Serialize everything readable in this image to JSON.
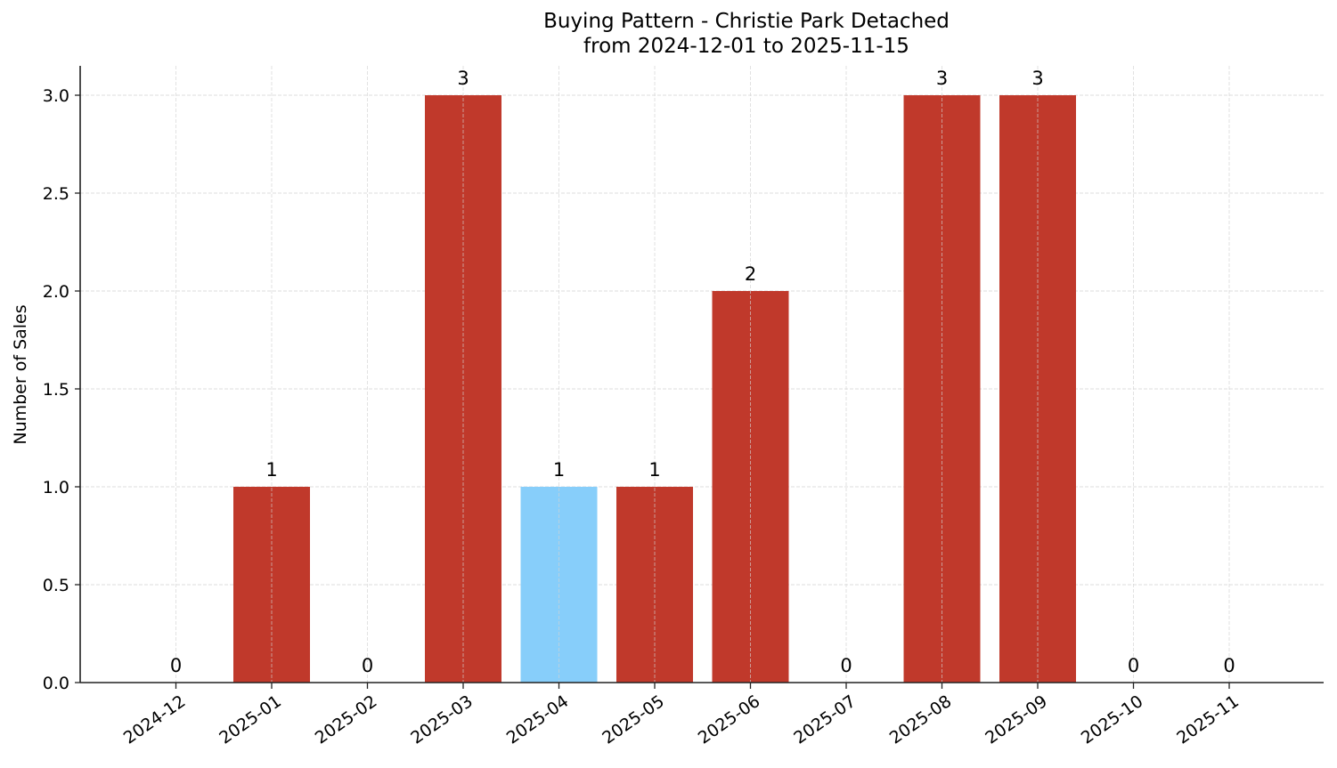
{
  "chart_data": {
    "type": "bar",
    "title": "Buying Pattern - Christie Park Detached",
    "subtitle": "from 2024-12-01 to 2025-11-15",
    "xlabel": "",
    "ylabel": "Number of Sales",
    "ylim": [
      0,
      3.15
    ],
    "yticks": [
      "0.0",
      "0.5",
      "1.0",
      "1.5",
      "2.0",
      "2.5",
      "3.0"
    ],
    "grid": true,
    "legend": null,
    "categories": [
      "2024-12",
      "2025-01",
      "2025-02",
      "2025-03",
      "2025-04",
      "2025-05",
      "2025-06",
      "2025-07",
      "2025-08",
      "2025-09",
      "2025-10",
      "2025-11"
    ],
    "values": [
      0,
      1,
      0,
      3,
      1,
      1,
      2,
      0,
      3,
      3,
      0,
      0
    ],
    "bar_colors": [
      "#c0392b",
      "#c0392b",
      "#c0392b",
      "#c0392b",
      "#87cefa",
      "#c0392b",
      "#c0392b",
      "#c0392b",
      "#c0392b",
      "#c0392b",
      "#c0392b",
      "#c0392b"
    ],
    "highlight_category": "2025-04",
    "colors": {
      "default": "#c0392b",
      "highlight": "#87cefa"
    }
  }
}
